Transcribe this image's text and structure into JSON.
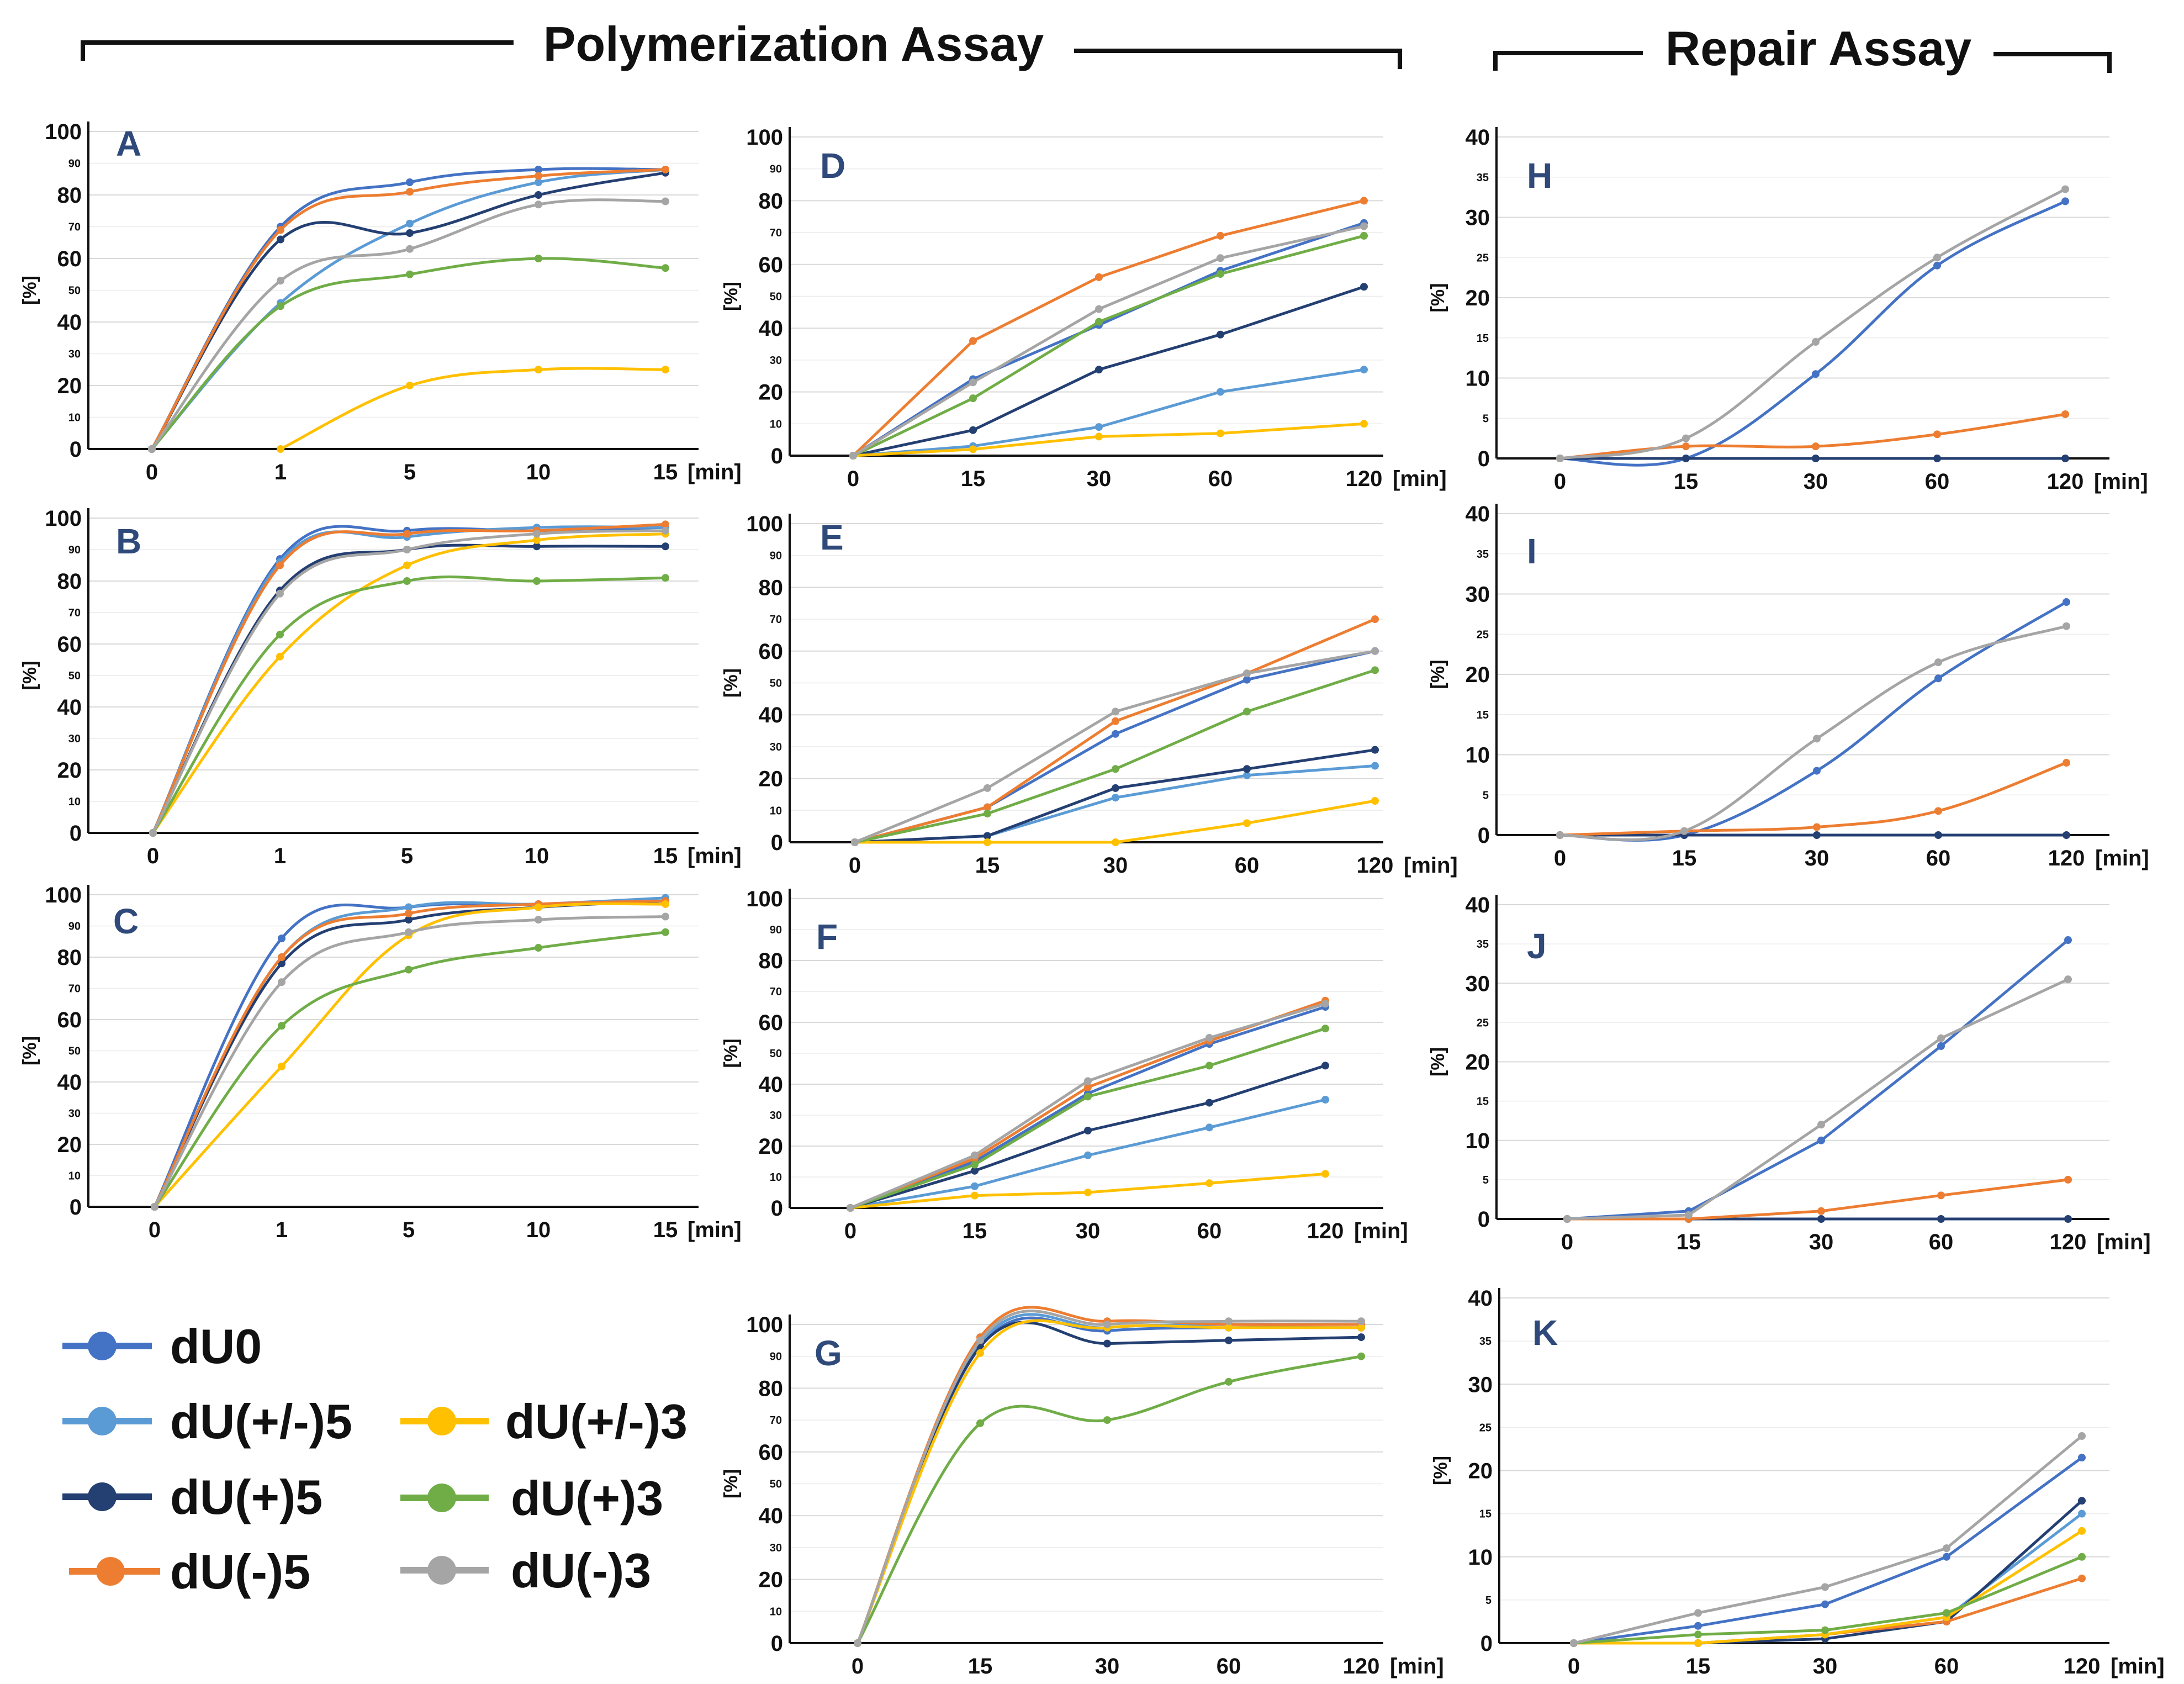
{
  "titles": {
    "polymerization": "Polymerization Assay",
    "repair": "Repair Assay"
  },
  "legend": [
    {
      "key": "dU0",
      "label": "dU0",
      "color": "#4472c4"
    },
    {
      "key": "dU_pm5",
      "label": "dU(+/-)5",
      "color": "#5b9bd5"
    },
    {
      "key": "dU_p5",
      "label": "dU(+)5",
      "color": "#243f72"
    },
    {
      "key": "dU_m5",
      "label": "dU(-)5",
      "color": "#ed7d31"
    },
    {
      "key": "dU_pm3",
      "label": "dU(+/-)3",
      "color": "#ffc000"
    },
    {
      "key": "dU_p3",
      "label": "dU(+)3",
      "color": "#70ad47"
    },
    {
      "key": "dU_m3",
      "label": "dU(-)3",
      "color": "#a5a5a5"
    }
  ],
  "chart_data": [
    {
      "id": "A",
      "type": "line",
      "ylabel": "[%]",
      "x": [
        "0",
        "1",
        "5",
        "10",
        "15"
      ],
      "xunit": "[min]",
      "ylim": [
        0,
        100
      ],
      "yticks_major": [
        "0",
        "20",
        "40",
        "60",
        "80",
        "100"
      ],
      "yticks_minor": [
        "10",
        "30",
        "50",
        "70",
        "90"
      ],
      "series": [
        {
          "name": "dU0",
          "values": [
            0,
            70,
            84,
            88,
            88
          ]
        },
        {
          "name": "dU(+/-)5",
          "values": [
            0,
            46,
            71,
            84,
            88
          ]
        },
        {
          "name": "dU(+)5",
          "values": [
            0,
            66,
            68,
            80,
            87
          ]
        },
        {
          "name": "dU(-)5",
          "values": [
            0,
            69,
            81,
            86,
            88
          ]
        },
        {
          "name": "dU(+/-)3",
          "values": [
            null,
            0,
            20,
            25,
            25
          ]
        },
        {
          "name": "dU(+)3",
          "values": [
            0,
            45,
            55,
            60,
            57
          ]
        },
        {
          "name": "dU(-)3",
          "values": [
            0,
            53,
            63,
            77,
            78
          ]
        }
      ]
    },
    {
      "id": "B",
      "type": "line",
      "ylabel": "[%]",
      "x": [
        "0",
        "1",
        "5",
        "10",
        "15"
      ],
      "xunit": "[min]",
      "ylim": [
        0,
        100
      ],
      "yticks_major": [
        "0",
        "20",
        "40",
        "60",
        "80",
        "100"
      ],
      "yticks_minor": [
        "10",
        "30",
        "50",
        "70",
        "90"
      ],
      "series": [
        {
          "name": "dU0",
          "values": [
            0,
            87,
            96,
            96,
            97
          ]
        },
        {
          "name": "dU(+/-)5",
          "values": [
            0,
            86,
            94,
            97,
            97
          ]
        },
        {
          "name": "dU(+)5",
          "values": [
            0,
            77,
            90,
            91,
            91
          ]
        },
        {
          "name": "dU(-)5",
          "values": [
            0,
            85,
            95,
            96,
            98
          ]
        },
        {
          "name": "dU(+/-)3",
          "values": [
            0,
            56,
            85,
            93,
            95
          ]
        },
        {
          "name": "dU(+)3",
          "values": [
            0,
            63,
            80,
            80,
            81
          ]
        },
        {
          "name": "dU(-)3",
          "values": [
            0,
            76,
            90,
            95,
            96
          ]
        }
      ]
    },
    {
      "id": "C",
      "type": "line",
      "ylabel": "[%]",
      "x": [
        "0",
        "1",
        "5",
        "10",
        "15"
      ],
      "xunit": "[min]",
      "ylim": [
        0,
        100
      ],
      "yticks_major": [
        "0",
        "20",
        "40",
        "60",
        "80",
        "100"
      ],
      "yticks_minor": [
        "10",
        "30",
        "50",
        "70",
        "90"
      ],
      "series": [
        {
          "name": "dU0",
          "values": [
            0,
            86,
            96,
            97,
            98
          ]
        },
        {
          "name": "dU(+/-)5",
          "values": [
            0,
            80,
            96,
            97,
            99
          ]
        },
        {
          "name": "dU(+)5",
          "values": [
            0,
            78,
            92,
            96,
            98
          ]
        },
        {
          "name": "dU(-)5",
          "values": [
            0,
            80,
            94,
            97,
            98
          ]
        },
        {
          "name": "dU(+/-)3",
          "values": [
            0,
            45,
            87,
            96,
            97
          ]
        },
        {
          "name": "dU(+)3",
          "values": [
            0,
            58,
            76,
            83,
            88
          ]
        },
        {
          "name": "dU(-)3",
          "values": [
            0,
            72,
            88,
            92,
            93
          ]
        }
      ]
    },
    {
      "id": "D",
      "type": "line",
      "ylabel": "[%]",
      "x": [
        "0",
        "15",
        "30",
        "60",
        "120"
      ],
      "xunit": "[min]",
      "ylim": [
        0,
        100
      ],
      "yticks_major": [
        "0",
        "20",
        "40",
        "60",
        "80",
        "100"
      ],
      "yticks_minor": [
        "10",
        "30",
        "50",
        "70",
        "90"
      ],
      "series": [
        {
          "name": "dU0",
          "values": [
            0,
            24,
            41,
            58,
            73
          ]
        },
        {
          "name": "dU(+/-)5",
          "values": [
            0,
            3,
            9,
            20,
            27
          ]
        },
        {
          "name": "dU(+)5",
          "values": [
            0,
            8,
            27,
            38,
            53
          ]
        },
        {
          "name": "dU(-)5",
          "values": [
            0,
            36,
            56,
            69,
            80
          ]
        },
        {
          "name": "dU(+/-)3",
          "values": [
            0,
            2,
            6,
            7,
            10
          ]
        },
        {
          "name": "dU(+)3",
          "values": [
            0,
            18,
            42,
            57,
            69
          ]
        },
        {
          "name": "dU(-)3",
          "values": [
            0,
            23,
            46,
            62,
            72
          ]
        }
      ]
    },
    {
      "id": "E",
      "type": "line",
      "ylabel": "[%]",
      "x": [
        "0",
        "15",
        "30",
        "60",
        "120"
      ],
      "xunit": "[min]",
      "ylim": [
        0,
        100
      ],
      "yticks_major": [
        "0",
        "20",
        "40",
        "60",
        "80",
        "100"
      ],
      "yticks_minor": [
        "10",
        "30",
        "50",
        "70",
        "90"
      ],
      "series": [
        {
          "name": "dU0",
          "values": [
            0,
            11,
            34,
            51,
            60
          ]
        },
        {
          "name": "dU(+/-)5",
          "values": [
            0,
            2,
            14,
            21,
            24
          ]
        },
        {
          "name": "dU(+)5",
          "values": [
            0,
            2,
            17,
            23,
            29
          ]
        },
        {
          "name": "dU(-)5",
          "values": [
            0,
            11,
            38,
            53,
            70
          ]
        },
        {
          "name": "dU(+/-)3",
          "values": [
            0,
            0,
            0,
            6,
            13
          ]
        },
        {
          "name": "dU(+)3",
          "values": [
            0,
            9,
            23,
            41,
            54
          ]
        },
        {
          "name": "dU(-)3",
          "values": [
            0,
            17,
            41,
            53,
            60
          ]
        }
      ]
    },
    {
      "id": "F",
      "type": "line",
      "ylabel": "[%]",
      "x": [
        "0",
        "15",
        "30",
        "60",
        "120"
      ],
      "xunit": "[min]",
      "ylim": [
        0,
        100
      ],
      "yticks_major": [
        "0",
        "20",
        "40",
        "60",
        "80",
        "100"
      ],
      "yticks_minor": [
        "10",
        "30",
        "50",
        "70",
        "90"
      ],
      "series": [
        {
          "name": "dU0",
          "values": [
            0,
            15,
            37,
            53,
            65
          ]
        },
        {
          "name": "dU(+/-)5",
          "values": [
            0,
            7,
            17,
            26,
            35
          ]
        },
        {
          "name": "dU(+)5",
          "values": [
            0,
            12,
            25,
            34,
            46
          ]
        },
        {
          "name": "dU(-)5",
          "values": [
            0,
            16,
            39,
            54,
            67
          ]
        },
        {
          "name": "dU(+/-)3",
          "values": [
            0,
            4,
            5,
            8,
            11
          ]
        },
        {
          "name": "dU(+)3",
          "values": [
            0,
            14,
            36,
            46,
            58
          ]
        },
        {
          "name": "dU(-)3",
          "values": [
            0,
            17,
            41,
            55,
            66
          ]
        }
      ]
    },
    {
      "id": "G",
      "type": "line",
      "ylabel": "[%]",
      "x": [
        "0",
        "15",
        "30",
        "60",
        "120"
      ],
      "xunit": "[min]",
      "ylim": [
        0,
        100
      ],
      "yticks_major": [
        "0",
        "20",
        "40",
        "60",
        "80",
        "100"
      ],
      "yticks_minor": [
        "10",
        "30",
        "50",
        "70",
        "90"
      ],
      "series": [
        {
          "name": "dU0",
          "values": [
            0,
            93,
            98,
            99,
            99
          ]
        },
        {
          "name": "dU(+/-)5",
          "values": [
            0,
            94,
            99,
            100,
            100
          ]
        },
        {
          "name": "dU(+)5",
          "values": [
            0,
            93,
            94,
            95,
            96
          ]
        },
        {
          "name": "dU(-)5",
          "values": [
            0,
            96,
            101,
            100,
            100
          ]
        },
        {
          "name": "dU(+/-)3",
          "values": [
            0,
            91,
            99,
            99,
            99
          ]
        },
        {
          "name": "dU(+)3",
          "values": [
            0,
            69,
            70,
            82,
            90
          ]
        },
        {
          "name": "dU(-)3",
          "values": [
            0,
            95,
            100,
            101,
            101
          ]
        }
      ]
    },
    {
      "id": "H",
      "type": "line",
      "ylabel": "[%]",
      "x": [
        "0",
        "15",
        "30",
        "60",
        "120"
      ],
      "xunit": "[min]",
      "ylim": [
        0,
        40
      ],
      "yticks_major": [
        "0",
        "10",
        "20",
        "30",
        "40"
      ],
      "yticks_minor": [
        "5",
        "15",
        "25",
        "35"
      ],
      "series": [
        {
          "name": "dU0",
          "values": [
            0,
            0,
            10.5,
            24,
            32
          ]
        },
        {
          "name": "dU(+)5",
          "values": [
            0,
            0,
            0,
            0,
            0
          ]
        },
        {
          "name": "dU(-)5",
          "values": [
            0,
            1.5,
            1.5,
            3,
            5.5
          ]
        },
        {
          "name": "dU(-)3",
          "values": [
            0,
            2.5,
            14.5,
            25,
            33.5
          ]
        }
      ]
    },
    {
      "id": "I",
      "type": "line",
      "ylabel": "[%]",
      "x": [
        "0",
        "15",
        "30",
        "60",
        "120"
      ],
      "xunit": "[min]",
      "ylim": [
        0,
        40
      ],
      "yticks_major": [
        "0",
        "10",
        "20",
        "30",
        "40"
      ],
      "yticks_minor": [
        "5",
        "15",
        "25",
        "35"
      ],
      "series": [
        {
          "name": "dU0",
          "values": [
            0,
            0,
            8,
            19.5,
            29
          ]
        },
        {
          "name": "dU(+)5",
          "values": [
            0,
            0,
            0,
            0,
            0
          ]
        },
        {
          "name": "dU(-)5",
          "values": [
            0,
            0.5,
            1,
            3,
            9
          ]
        },
        {
          "name": "dU(-)3",
          "values": [
            0,
            0.5,
            12,
            21.5,
            26
          ]
        }
      ]
    },
    {
      "id": "J",
      "type": "line",
      "ylabel": "[%]",
      "x": [
        "0",
        "15",
        "30",
        "60",
        "120"
      ],
      "xunit": "[min]",
      "ylim": [
        0,
        40
      ],
      "yticks_major": [
        "0",
        "10",
        "20",
        "30",
        "40"
      ],
      "yticks_minor": [
        "5",
        "15",
        "25",
        "35"
      ],
      "series": [
        {
          "name": "dU0",
          "values": [
            0,
            1,
            10,
            22,
            35.5
          ]
        },
        {
          "name": "dU(+)5",
          "values": [
            0,
            0,
            0,
            0,
            0
          ]
        },
        {
          "name": "dU(-)5",
          "values": [
            0,
            0,
            1,
            3,
            5
          ]
        },
        {
          "name": "dU(-)3",
          "values": [
            0,
            0.5,
            12,
            23,
            30.5
          ]
        }
      ]
    },
    {
      "id": "K",
      "type": "line",
      "ylabel": "[%]",
      "x": [
        "0",
        "15",
        "30",
        "60",
        "120"
      ],
      "xunit": "[min]",
      "ylim": [
        0,
        40
      ],
      "yticks_major": [
        "0",
        "10",
        "20",
        "30",
        "40"
      ],
      "yticks_minor": [
        "5",
        "15",
        "25",
        "35"
      ],
      "series": [
        {
          "name": "dU0",
          "values": [
            0,
            2,
            4.5,
            10,
            21.5
          ]
        },
        {
          "name": "dU(+/-)5",
          "values": [
            0,
            0,
            1,
            3,
            15
          ]
        },
        {
          "name": "dU(+)5",
          "values": [
            0,
            0,
            0.5,
            2.5,
            16.5
          ]
        },
        {
          "name": "dU(-)5",
          "values": [
            0,
            0,
            1,
            2.5,
            7.5
          ]
        },
        {
          "name": "dU(+/-)3",
          "values": [
            0,
            0,
            1,
            3,
            13
          ]
        },
        {
          "name": "dU(+)3",
          "values": [
            0,
            1,
            1.5,
            3.5,
            10
          ]
        },
        {
          "name": "dU(-)3",
          "values": [
            0,
            3.5,
            6.5,
            11,
            24
          ]
        }
      ]
    }
  ]
}
